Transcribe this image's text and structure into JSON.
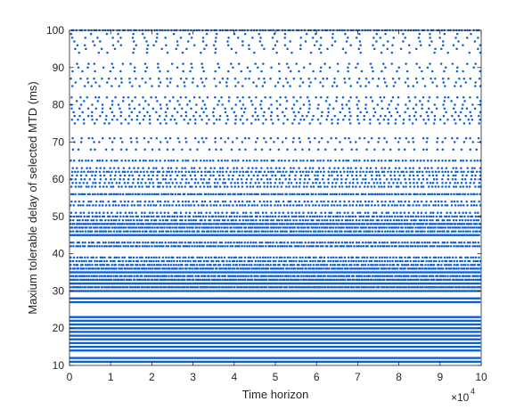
{
  "chart_data": {
    "type": "scatter",
    "title": "",
    "xlabel": "Time horizon",
    "ylabel": "Maxium tolerable delay of selected MTD (ms)",
    "xlim": [
      0,
      100000
    ],
    "ylim": [
      10,
      100
    ],
    "x_ticks": [
      0,
      10000,
      20000,
      30000,
      40000,
      50000,
      60000,
      70000,
      80000,
      90000,
      100000
    ],
    "x_tick_labels": [
      "0",
      "1",
      "2",
      "3",
      "4",
      "5",
      "6",
      "7",
      "8",
      "9",
      "10"
    ],
    "x_exponent_label": "×10",
    "x_exponent_power": "4",
    "y_ticks": [
      10,
      20,
      30,
      40,
      50,
      60,
      70,
      80,
      90,
      100
    ],
    "y_tick_labels": [
      "10",
      "20",
      "30",
      "40",
      "50",
      "60",
      "70",
      "80",
      "90",
      "100"
    ],
    "grid": false,
    "marker_color": "#0a5ed7",
    "series": [
      {
        "levels": [
          11,
          12,
          14,
          15,
          16,
          17,
          18,
          19,
          20,
          21,
          22,
          23,
          27,
          28,
          30,
          31,
          32,
          33,
          34,
          35,
          36,
          37,
          38,
          39,
          42,
          43,
          45,
          46,
          47,
          48,
          49,
          50,
          51,
          53,
          54,
          56,
          58,
          59,
          60,
          61,
          62,
          63,
          65,
          68,
          70,
          71,
          75,
          76,
          77,
          78,
          79,
          80,
          81,
          82,
          85,
          86,
          87,
          89,
          90,
          91,
          94,
          95,
          96,
          97,
          98,
          99,
          100
        ],
        "density": [
          1.0,
          1.0,
          1.0,
          1.0,
          1.0,
          1.0,
          1.0,
          1.0,
          1.0,
          1.0,
          1.0,
          1.0,
          1.0,
          1.0,
          1.0,
          0.85,
          1.0,
          0.8,
          0.7,
          1.0,
          0.75,
          0.6,
          0.55,
          0.5,
          0.6,
          0.5,
          0.9,
          0.6,
          0.7,
          0.8,
          0.5,
          0.55,
          0.35,
          0.45,
          0.35,
          0.6,
          0.4,
          0.35,
          0.3,
          0.3,
          0.45,
          0.3,
          0.4,
          0.18,
          0.15,
          0.2,
          0.15,
          0.22,
          0.2,
          0.15,
          0.18,
          0.15,
          0.12,
          0.2,
          0.15,
          0.12,
          0.2,
          0.12,
          0.1,
          0.12,
          0.08,
          0.1,
          0.12,
          0.1,
          0.12,
          0.1,
          0.5
        ]
      }
    ]
  }
}
